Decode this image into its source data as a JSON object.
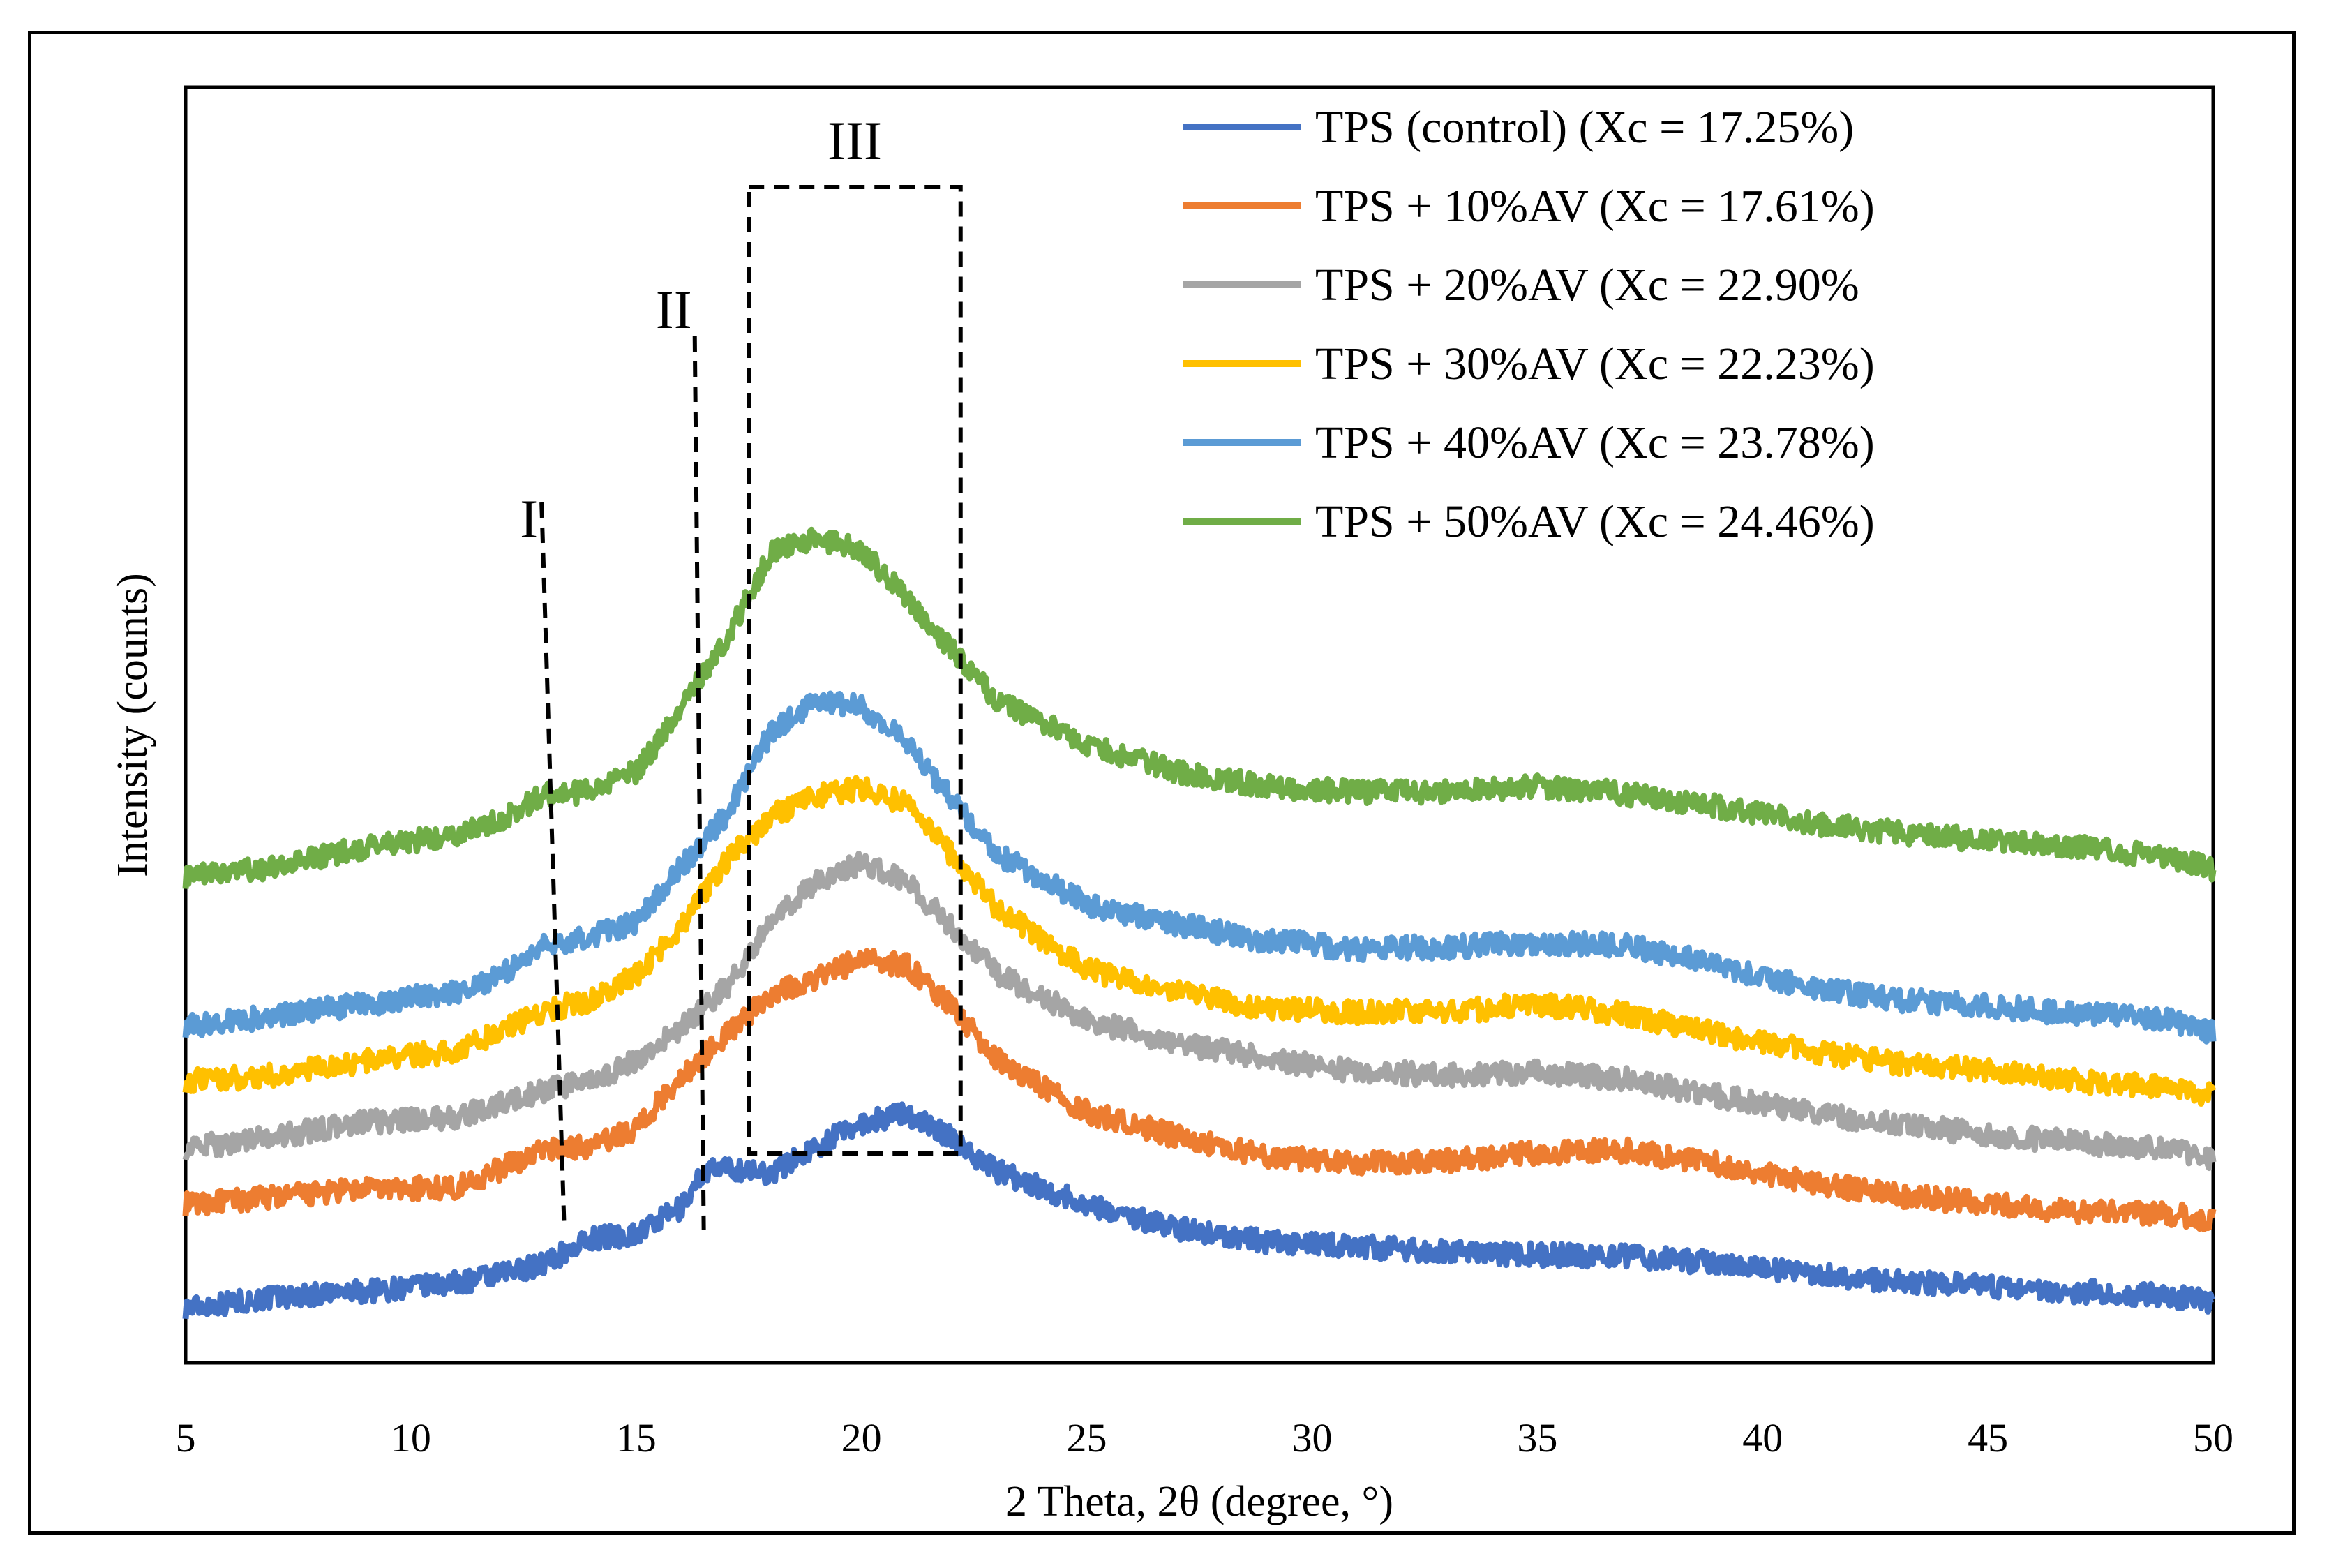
{
  "chart_data": {
    "type": "line",
    "title": "",
    "xlabel": "2 Theta, 2θ (degree, °)",
    "ylabel": "Intensity (counts)",
    "xlim": [
      5,
      50
    ],
    "xticks": [
      "5",
      "10",
      "15",
      "20",
      "25",
      "30",
      "35",
      "40",
      "45",
      "50"
    ],
    "y_tick_labels_shown": false,
    "legend_position": "top-right",
    "annotations": {
      "labels": [
        "I",
        "II",
        "III"
      ],
      "I_line": {
        "x_top": 12.9,
        "x_bottom": 13.4
      },
      "II_line": {
        "x_top": 16.3,
        "x_bottom": 16.5
      },
      "III_box": {
        "x_min": 17.5,
        "x_max": 22.2
      }
    },
    "series": [
      {
        "name": "TPS (control) (Xc = 17.25%)",
        "color": "#4472C4",
        "points": [
          [
            5,
            -6
          ],
          [
            7,
            4
          ],
          [
            9,
            10
          ],
          [
            11,
            18
          ],
          [
            12,
            26
          ],
          [
            13,
            38
          ],
          [
            14,
            62
          ],
          [
            15,
            66
          ],
          [
            16,
            92
          ],
          [
            16.5,
            128
          ],
          [
            17,
            130
          ],
          [
            18,
            126
          ],
          [
            19,
            152
          ],
          [
            20,
            175
          ],
          [
            21,
            185
          ],
          [
            22,
            160
          ],
          [
            23,
            128
          ],
          [
            25,
            95
          ],
          [
            27,
            72
          ],
          [
            29,
            58
          ],
          [
            31,
            54
          ],
          [
            33,
            48
          ],
          [
            35,
            46
          ],
          [
            37,
            44
          ],
          [
            39,
            38
          ],
          [
            41,
            28
          ],
          [
            43,
            20
          ],
          [
            45,
            14
          ],
          [
            47,
            10
          ],
          [
            49,
            5
          ],
          [
            50,
            0
          ]
        ]
      },
      {
        "name": "TPS + 10%AV (Xc = 17.61%)",
        "color": "#ED7D31",
        "points": [
          [
            5,
            95
          ],
          [
            7,
            103
          ],
          [
            9,
            110
          ],
          [
            11,
            112
          ],
          [
            12,
            130
          ],
          [
            13,
            150
          ],
          [
            14,
            152
          ],
          [
            15,
            170
          ],
          [
            16,
            220
          ],
          [
            17,
            262
          ],
          [
            18,
            302
          ],
          [
            19,
            318
          ],
          [
            20,
            336
          ],
          [
            21,
            330
          ],
          [
            22,
            290
          ],
          [
            23,
            238
          ],
          [
            25,
            186
          ],
          [
            27,
            162
          ],
          [
            29,
            142
          ],
          [
            31,
            136
          ],
          [
            33,
            138
          ],
          [
            35,
            146
          ],
          [
            37,
            148
          ],
          [
            39,
            135
          ],
          [
            41,
            118
          ],
          [
            43,
            104
          ],
          [
            45,
            96
          ],
          [
            47,
            88
          ],
          [
            49,
            86
          ],
          [
            50,
            80
          ]
        ]
      },
      {
        "name": "TPS + 20%AV (Xc = 22.90%",
        "color": "#A5A5A5",
        "points": [
          [
            5,
            150
          ],
          [
            7,
            162
          ],
          [
            9,
            176
          ],
          [
            11,
            180
          ],
          [
            12,
            194
          ],
          [
            13,
            208
          ],
          [
            14,
            215
          ],
          [
            15,
            236
          ],
          [
            16,
            268
          ],
          [
            17,
            308
          ],
          [
            18,
            372
          ],
          [
            19,
            412
          ],
          [
            20,
            430
          ],
          [
            21,
            412
          ],
          [
            22,
            368
          ],
          [
            23,
            322
          ],
          [
            25,
            276
          ],
          [
            27,
            254
          ],
          [
            29,
            238
          ],
          [
            31,
            226
          ],
          [
            33,
            222
          ],
          [
            35,
            225
          ],
          [
            37,
            218
          ],
          [
            39,
            202
          ],
          [
            41,
            186
          ],
          [
            43,
            174
          ],
          [
            45,
            164
          ],
          [
            47,
            156
          ],
          [
            49,
            150
          ],
          [
            50,
            140
          ]
        ]
      },
      {
        "name": "TPS + 30%AV (Xc = 22.23%)",
        "color": "#FFC000",
        "points": [
          [
            5,
            216
          ],
          [
            7,
            222
          ],
          [
            9,
            236
          ],
          [
            11,
            246
          ],
          [
            12,
            266
          ],
          [
            13,
            286
          ],
          [
            14,
            296
          ],
          [
            15,
            320
          ],
          [
            16,
            368
          ],
          [
            17,
            432
          ],
          [
            18,
            476
          ],
          [
            19,
            496
          ],
          [
            20,
            504
          ],
          [
            21,
            488
          ],
          [
            22,
            438
          ],
          [
            23,
            386
          ],
          [
            25,
            326
          ],
          [
            27,
            304
          ],
          [
            29,
            288
          ],
          [
            31,
            284
          ],
          [
            33,
            284
          ],
          [
            35,
            292
          ],
          [
            37,
            282
          ],
          [
            39,
            262
          ],
          [
            41,
            246
          ],
          [
            43,
            234
          ],
          [
            45,
            226
          ],
          [
            47,
            216
          ],
          [
            49,
            210
          ],
          [
            50,
            202
          ]
        ]
      },
      {
        "name": "TPS + 40%AV (Xc = 23.78%)",
        "color": "#5B9BD5",
        "points": [
          [
            5,
            270
          ],
          [
            7,
            280
          ],
          [
            9,
            292
          ],
          [
            11,
            304
          ],
          [
            12,
            320
          ],
          [
            13,
            350
          ],
          [
            14,
            358
          ],
          [
            15,
            372
          ],
          [
            16,
            426
          ],
          [
            17,
            478
          ],
          [
            18,
            560
          ],
          [
            19,
            590
          ],
          [
            20,
            584
          ],
          [
            21,
            548
          ],
          [
            22,
            494
          ],
          [
            23,
            440
          ],
          [
            25,
            390
          ],
          [
            27,
            370
          ],
          [
            29,
            354
          ],
          [
            31,
            346
          ],
          [
            33,
            348
          ],
          [
            35,
            352
          ],
          [
            37,
            350
          ],
          [
            39,
            330
          ],
          [
            41,
            308
          ],
          [
            43,
            296
          ],
          [
            45,
            290
          ],
          [
            47,
            282
          ],
          [
            49,
            276
          ],
          [
            50,
            264
          ]
        ]
      },
      {
        "name": "TPS + 50%AV (Xc = 24.46%)",
        "color": "#70AD47",
        "points": [
          [
            5,
            416
          ],
          [
            7,
            426
          ],
          [
            9,
            446
          ],
          [
            11,
            458
          ],
          [
            12,
            474
          ],
          [
            13,
            498
          ],
          [
            14,
            500
          ],
          [
            15,
            520
          ],
          [
            16,
            582
          ],
          [
            17,
            650
          ],
          [
            18,
            736
          ],
          [
            19,
            748
          ],
          [
            20,
            738
          ],
          [
            21,
            690
          ],
          [
            22,
            640
          ],
          [
            23,
            590
          ],
          [
            25,
            546
          ],
          [
            27,
            520
          ],
          [
            29,
            506
          ],
          [
            31,
            500
          ],
          [
            33,
            500
          ],
          [
            35,
            506
          ],
          [
            37,
            498
          ],
          [
            39,
            486
          ],
          [
            41,
            470
          ],
          [
            43,
            460
          ],
          [
            45,
            452
          ],
          [
            47,
            446
          ],
          [
            49,
            436
          ],
          [
            50,
            424
          ]
        ]
      }
    ]
  }
}
